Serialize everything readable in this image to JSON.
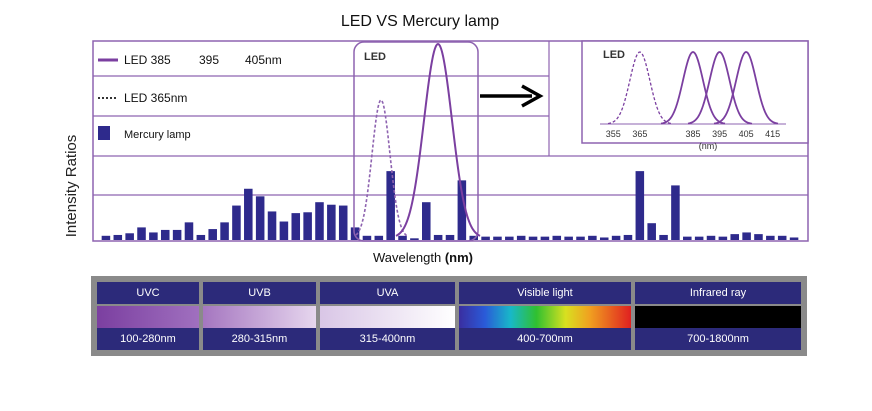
{
  "chart_data": {
    "type": "bar",
    "title": "LED VS Mercury lamp",
    "xlabel": "Wavelength",
    "xlabel_unit": "(nm)",
    "ylabel": "Intensity Ratios",
    "legend": {
      "placement": "top-left",
      "entries": [
        {
          "label_main": "LED 385",
          "label_a": "395",
          "label_b": "405nm",
          "style": "solid-line",
          "color": "#7b3fa0"
        },
        {
          "label_main": "LED 365nm",
          "style": "dotted-line",
          "color": "#333333"
        },
        {
          "label_main": "Mercury lamp",
          "style": "bar",
          "color": "#2e2a8c"
        }
      ]
    },
    "mercury_bars": [
      0.05,
      0.06,
      0.08,
      0.15,
      0.09,
      0.12,
      0.12,
      0.21,
      0.06,
      0.13,
      0.21,
      0.41,
      0.61,
      0.52,
      0.34,
      0.22,
      0.32,
      0.33,
      0.45,
      0.42,
      0.41,
      0.15,
      0.05,
      0.05,
      0.82,
      0.05,
      0.02,
      0.45,
      0.06,
      0.06,
      0.71,
      0.05,
      0.04,
      0.04,
      0.04,
      0.05,
      0.04,
      0.04,
      0.05,
      0.04,
      0.04,
      0.05,
      0.03,
      0.05,
      0.06,
      0.82,
      0.2,
      0.06,
      0.65,
      0.04,
      0.04,
      0.05,
      0.04,
      0.07,
      0.09,
      0.07,
      0.05,
      0.05,
      0.03
    ],
    "led_box_label": "LED",
    "inset": {
      "label": "LED",
      "x_ticks": [
        "355",
        "365",
        "385",
        "395",
        "405",
        "415"
      ],
      "x_unit": "(nm)",
      "x_range": [
        350,
        420
      ],
      "peaks": [
        {
          "center": 365,
          "style": "dashed"
        },
        {
          "center": 385,
          "style": "solid"
        },
        {
          "center": 395,
          "style": "solid"
        },
        {
          "center": 405,
          "style": "solid"
        }
      ]
    },
    "grid": true,
    "colors": {
      "bar": "#2e2a8c",
      "led": "#7b3fa0",
      "frame": "#8e63b0"
    }
  },
  "spectrum_bands": [
    {
      "name": "UVC",
      "range": "100-280nm"
    },
    {
      "name": "UVB",
      "range": "280-315nm"
    },
    {
      "name": "UVA",
      "range": "315-400nm"
    },
    {
      "name": "Visible light",
      "range": "400-700nm"
    },
    {
      "name": "Infrared ray",
      "range": "700-1800nm"
    }
  ]
}
